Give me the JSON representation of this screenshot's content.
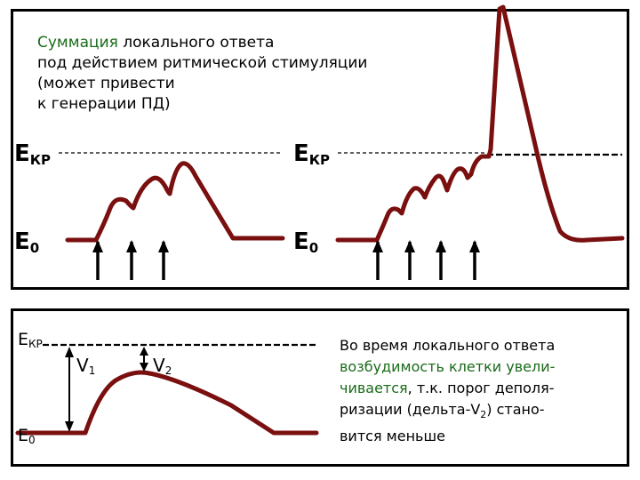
{
  "top_panel": {
    "caption": {
      "highlight": "Суммация",
      "line1_rest": " локального ответа",
      "line2": "под действием ритмической стимуляции",
      "line3": "(может привести",
      "line4": "к генерации ПД)"
    },
    "left_graph": {
      "level_high": {
        "main": "E",
        "sub": "КР"
      },
      "level_low": {
        "main": "E",
        "sub": "0"
      },
      "stimulus_arrows": 3
    },
    "right_graph": {
      "level_high": {
        "main": "E",
        "sub": "КР"
      },
      "level_low": {
        "main": "E",
        "sub": "0"
      },
      "stimulus_arrows": 4
    }
  },
  "bottom_panel": {
    "level_high": {
      "main": "E",
      "sub": "КР"
    },
    "level_low": {
      "main": "E",
      "sub": "0"
    },
    "v1": {
      "main": "V",
      "sub": "1"
    },
    "v2": {
      "main": "V",
      "sub": "2"
    },
    "text": {
      "line1": "Во время локального ответа",
      "line2": "возбудимость клетки увели-",
      "line3_green": "чивается",
      "line3_rest": ", т.к. порог деполя-",
      "line4_pre": "ризации (дельта-V",
      "line4_sub": "2",
      "line4_post": ") стано-",
      "line5": "вится меньше"
    }
  },
  "colors": {
    "curve": "#7a0f0f",
    "caption_highlight": "#1a6b1a",
    "arrow": "#000000",
    "threshold_line": "#000000"
  }
}
